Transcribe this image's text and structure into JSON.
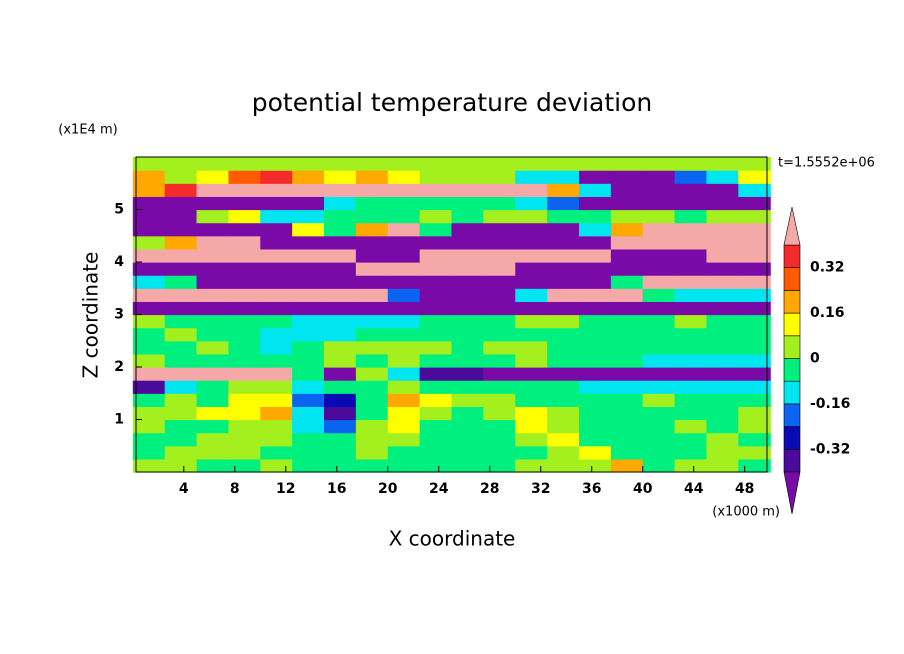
{
  "chart_data": {
    "type": "contour",
    "title": "potential temperature deviation",
    "xlabel": "X coordinate",
    "ylabel": "Z coordinate",
    "xunit": "(x1000 m)",
    "yunit": "(x1E4 m)",
    "annotation": "t=1.5552e+06",
    "xlim": [
      0.25,
      49.75
    ],
    "ylim": [
      0,
      6
    ],
    "xticks": [
      4,
      8,
      12,
      16,
      20,
      24,
      28,
      32,
      36,
      40,
      44,
      48
    ],
    "yticks": [
      1,
      2,
      3,
      4,
      5
    ],
    "levels": [
      -0.4,
      -0.32,
      -0.24,
      -0.16,
      -0.08,
      0,
      0.08,
      0.16,
      0.24,
      0.32,
      0.4
    ],
    "colors": [
      "#7a0aa8",
      "#4a0a9c",
      "#0a0ab4",
      "#0a64f0",
      "#00e6f0",
      "#00f080",
      "#a4f01e",
      "#ffff00",
      "#ffa800",
      "#ff5a00",
      "#f52a2a",
      "#f4a8a8"
    ],
    "colorbar_ticks": [
      0.32,
      0.16,
      0,
      -0.16,
      -0.32
    ],
    "x": [
      1.25,
      3.75,
      6.25,
      8.75,
      11.25,
      13.75,
      16.25,
      18.75,
      21.25,
      23.75,
      26.25,
      28.75,
      31.25,
      33.75,
      36.25,
      38.75,
      41.25,
      43.75,
      46.25,
      48.75
    ],
    "y": [
      0.125,
      0.375,
      0.625,
      0.875,
      1.125,
      1.375,
      1.625,
      1.875,
      2.125,
      2.375,
      2.625,
      2.875,
      3.125,
      3.375,
      3.625,
      3.875,
      4.125,
      4.375,
      4.625,
      4.875,
      5.125,
      5.375,
      5.625,
      5.875
    ],
    "z": [
      [
        0.04,
        0.04,
        -0.04,
        -0.04,
        0.04,
        -0.04,
        -0.04,
        -0.04,
        -0.04,
        -0.04,
        -0.04,
        -0.04,
        0.04,
        0.04,
        0.04,
        0.2,
        -0.04,
        0.04,
        0.04,
        -0.04
      ],
      [
        -0.04,
        0.04,
        0.04,
        0.04,
        -0.04,
        -0.04,
        -0.04,
        0.04,
        -0.04,
        -0.04,
        -0.04,
        -0.04,
        -0.04,
        0.04,
        0.12,
        -0.04,
        -0.04,
        -0.04,
        0.04,
        0.04
      ],
      [
        -0.04,
        -0.04,
        0.04,
        0.04,
        0.04,
        -0.04,
        -0.04,
        0.04,
        0.04,
        -0.04,
        -0.04,
        -0.04,
        0.04,
        0.12,
        -0.04,
        -0.04,
        -0.04,
        -0.04,
        0.04,
        -0.04
      ],
      [
        0.04,
        -0.04,
        -0.04,
        0.04,
        0.04,
        -0.12,
        -0.2,
        0.04,
        0.12,
        -0.04,
        -0.04,
        -0.04,
        0.12,
        0.04,
        -0.04,
        -0.04,
        -0.04,
        0.04,
        -0.04,
        0.04
      ],
      [
        0.04,
        0.04,
        0.12,
        0.12,
        0.2,
        -0.12,
        -0.36,
        -0.04,
        0.12,
        0.04,
        -0.04,
        0.04,
        0.12,
        0.04,
        -0.04,
        -0.04,
        -0.04,
        -0.04,
        -0.04,
        0.04
      ],
      [
        -0.04,
        0.04,
        -0.04,
        0.12,
        0.12,
        -0.2,
        -0.28,
        -0.04,
        0.2,
        0.12,
        0.04,
        0.04,
        -0.04,
        -0.04,
        -0.04,
        -0.04,
        0.04,
        -0.04,
        -0.04,
        -0.04
      ],
      [
        -0.36,
        -0.12,
        -0.04,
        0.04,
        0.04,
        -0.12,
        -0.04,
        -0.04,
        0.04,
        -0.04,
        -0.04,
        -0.04,
        -0.04,
        -0.04,
        -0.12,
        -0.12,
        -0.12,
        -0.12,
        -0.12,
        -0.12
      ],
      [
        0.5,
        0.5,
        0.5,
        0.5,
        0.5,
        -0.04,
        -0.44,
        0.04,
        -0.12,
        -0.36,
        -0.36,
        -0.44,
        -0.44,
        -0.44,
        -0.44,
        -0.44,
        -0.44,
        -0.44,
        -0.44,
        -0.44
      ],
      [
        0.04,
        -0.04,
        -0.04,
        -0.04,
        -0.04,
        -0.04,
        0.04,
        -0.04,
        0.04,
        -0.04,
        -0.04,
        -0.04,
        0.04,
        -0.04,
        -0.04,
        -0.04,
        -0.12,
        -0.12,
        -0.12,
        -0.12
      ],
      [
        -0.04,
        -0.04,
        0.04,
        -0.04,
        -0.12,
        -0.04,
        0.04,
        0.04,
        0.04,
        0.04,
        -0.04,
        0.04,
        0.04,
        -0.04,
        -0.04,
        -0.04,
        -0.04,
        -0.04,
        -0.04,
        -0.04
      ],
      [
        -0.04,
        0.04,
        -0.04,
        -0.04,
        -0.12,
        -0.12,
        -0.12,
        -0.04,
        -0.04,
        -0.04,
        -0.04,
        -0.04,
        -0.04,
        -0.04,
        -0.04,
        -0.04,
        -0.04,
        -0.04,
        -0.04,
        -0.04
      ],
      [
        0.04,
        -0.04,
        -0.04,
        -0.04,
        -0.04,
        -0.12,
        -0.12,
        -0.12,
        -0.12,
        -0.04,
        -0.04,
        -0.04,
        0.04,
        0.04,
        -0.04,
        -0.04,
        -0.04,
        0.04,
        -0.04,
        -0.04
      ],
      [
        -0.44,
        -0.44,
        -0.44,
        -0.44,
        -0.44,
        -0.44,
        -0.44,
        -0.44,
        -0.44,
        -0.44,
        -0.44,
        -0.44,
        -0.44,
        -0.44,
        -0.44,
        -0.44,
        -0.44,
        -0.44,
        -0.44,
        -0.44
      ],
      [
        0.5,
        0.5,
        0.5,
        0.5,
        0.5,
        0.5,
        0.5,
        0.5,
        -0.2,
        -0.44,
        -0.44,
        -0.44,
        -0.12,
        0.5,
        0.5,
        0.5,
        -0.04,
        -0.12,
        -0.12,
        -0.12
      ],
      [
        -0.12,
        -0.04,
        -0.44,
        -0.44,
        -0.44,
        -0.44,
        -0.44,
        -0.44,
        -0.44,
        -0.44,
        -0.44,
        -0.44,
        -0.44,
        -0.44,
        -0.44,
        -0.04,
        0.5,
        0.5,
        0.5,
        0.5
      ],
      [
        -0.44,
        -0.44,
        -0.44,
        -0.44,
        -0.44,
        -0.44,
        -0.44,
        0.5,
        0.5,
        0.5,
        0.5,
        0.5,
        -0.44,
        -0.44,
        -0.44,
        -0.44,
        -0.44,
        -0.44,
        -0.44,
        -0.44
      ],
      [
        0.5,
        0.5,
        0.5,
        0.5,
        0.5,
        0.5,
        0.5,
        -0.44,
        -0.44,
        0.5,
        0.5,
        0.5,
        0.5,
        0.5,
        0.5,
        -0.44,
        -0.44,
        -0.44,
        0.5,
        0.5
      ],
      [
        0.04,
        0.2,
        0.5,
        0.5,
        -0.44,
        -0.44,
        -0.44,
        -0.44,
        -0.44,
        -0.44,
        -0.44,
        -0.44,
        -0.44,
        -0.44,
        -0.44,
        0.5,
        0.5,
        0.5,
        0.5,
        0.5
      ],
      [
        -0.44,
        -0.44,
        -0.44,
        -0.44,
        -0.44,
        0.12,
        -0.04,
        0.2,
        0.5,
        -0.04,
        -0.44,
        -0.44,
        -0.44,
        -0.44,
        -0.12,
        0.2,
        0.5,
        0.5,
        0.5,
        0.5
      ],
      [
        -0.44,
        -0.44,
        0.04,
        0.12,
        -0.12,
        -0.12,
        -0.04,
        -0.04,
        -0.04,
        0.04,
        -0.04,
        0.04,
        0.04,
        -0.04,
        -0.04,
        0.04,
        0.04,
        -0.04,
        0.04,
        0.04
      ],
      [
        -0.44,
        -0.44,
        -0.44,
        -0.44,
        -0.44,
        -0.44,
        -0.12,
        -0.04,
        -0.04,
        -0.04,
        -0.04,
        -0.04,
        -0.12,
        -0.2,
        -0.44,
        -0.44,
        -0.44,
        -0.44,
        -0.44,
        -0.44
      ],
      [
        0.2,
        0.36,
        0.5,
        0.5,
        0.5,
        0.5,
        0.5,
        0.5,
        0.5,
        0.5,
        0.5,
        0.5,
        0.5,
        0.2,
        -0.12,
        -0.44,
        -0.44,
        -0.44,
        -0.44,
        -0.12
      ],
      [
        0.2,
        0.04,
        0.12,
        0.28,
        0.36,
        0.2,
        0.12,
        0.2,
        0.12,
        0.04,
        0.04,
        0.04,
        -0.12,
        -0.12,
        -0.44,
        -0.44,
        -0.44,
        -0.2,
        -0.12,
        0.12
      ],
      [
        0.04,
        0.04,
        0.04,
        0.04,
        0.04,
        0.04,
        0.04,
        0.04,
        0.04,
        0.04,
        0.04,
        0.04,
        0.04,
        0.04,
        0.04,
        0.04,
        0.04,
        0.04,
        0.04,
        0.04
      ]
    ]
  }
}
